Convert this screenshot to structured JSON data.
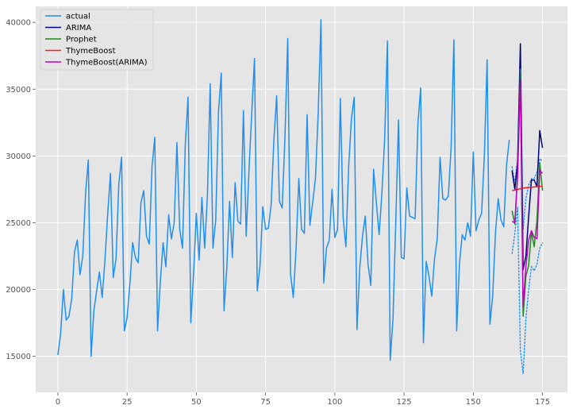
{
  "chart_data": {
    "type": "line",
    "title": "",
    "xlabel": "",
    "ylabel": "",
    "xlim": [
      -8,
      184
    ],
    "ylim": [
      12300,
      41200
    ],
    "x_ticks": [
      0,
      25,
      50,
      75,
      100,
      125,
      150,
      175
    ],
    "y_ticks": [
      15000,
      20000,
      25000,
      30000,
      35000,
      40000
    ],
    "grid": true,
    "background": "#e5e5e5",
    "legend_position": "top-left",
    "series": [
      {
        "name": "actual",
        "color": "#1f8ff0",
        "style": "solid",
        "x_start": 0,
        "values": [
          15100,
          16700,
          20000,
          17700,
          18000,
          19300,
          22800,
          23700,
          21100,
          22500,
          27200,
          29700,
          15000,
          18400,
          19900,
          21300,
          19400,
          22200,
          25700,
          28700,
          20900,
          22300,
          27900,
          29900,
          16900,
          17900,
          20400,
          23500,
          22400,
          22000,
          26500,
          27400,
          24000,
          23400,
          29200,
          31400,
          16900,
          20600,
          23500,
          21700,
          25600,
          23800,
          25000,
          31000,
          24500,
          23100,
          30800,
          34400,
          17500,
          21200,
          25700,
          22200,
          26900,
          23100,
          27000,
          35400,
          23100,
          25200,
          33300,
          36200,
          18400,
          21600,
          26600,
          22400,
          28000,
          25100,
          24900,
          33400,
          24000,
          28900,
          33200,
          37300,
          19900,
          21800,
          26200,
          24500,
          24600,
          26300,
          31200,
          34500,
          26600,
          26100,
          31400,
          38800,
          21200,
          19400,
          23000,
          28300,
          24500,
          24200,
          33100,
          24800,
          26500,
          28300,
          33200,
          40200,
          20500,
          23100,
          23700,
          27500,
          23900,
          24500,
          34300,
          25400,
          23200,
          29200,
          32800,
          34400,
          17000,
          21600,
          24000,
          25500,
          21900,
          20300,
          29000,
          26500,
          24100,
          27200,
          31300,
          38600,
          14700,
          17800,
          25000,
          32700,
          22400,
          22300,
          27600,
          25500,
          25400,
          25300,
          32400,
          35100,
          16000,
          22100,
          21000,
          19500,
          22300,
          23800,
          29900,
          26800,
          26700,
          27000,
          30700,
          38700,
          16900,
          21900,
          24100,
          23700,
          25000,
          24000,
          30300,
          24400,
          25200,
          25700,
          30000,
          37200,
          17400,
          19500,
          24200,
          26800,
          25200,
          24700,
          29300,
          31200
        ]
      },
      {
        "name": "ARIMA",
        "color": "#00007f",
        "style": "solid",
        "x_start": 164,
        "values": [
          28900,
          27500,
          29500,
          38400,
          21500,
          22500,
          25500,
          28200,
          28200,
          27700,
          31900,
          30600
        ]
      },
      {
        "name": "Prophet",
        "color": "#1a8c1a",
        "style": "solid",
        "x_start": 164,
        "values": [
          25900,
          24900,
          28700,
          36500,
          18000,
          21000,
          21800,
          24300,
          23200,
          25200,
          29500,
          27400
        ]
      },
      {
        "name": "ThymeBoost",
        "color": "#ff1a1a",
        "style": "solid",
        "x_start": 164,
        "values": [
          27400,
          27450,
          27500,
          27550,
          27600,
          27620,
          27640,
          27660,
          27680,
          27700,
          27720,
          27740
        ]
      },
      {
        "name": "ThymeBoost(ARIMA)",
        "color": "#bf00bf",
        "style": "solid",
        "x_start": 164,
        "values": [
          25100,
          25000,
          28500,
          35700,
          18700,
          21700,
          23700,
          24400,
          23900,
          23800,
          28900,
          28700
        ]
      }
    ],
    "bands": [
      {
        "color": "#1f8ff0",
        "style": "dotted",
        "x_start": 164,
        "upper": [
          29200,
          28000,
          29800,
          36800,
          24500,
          26800,
          27800,
          28300,
          28300,
          28800,
          29800,
          29600
        ],
        "lower": [
          22700,
          24200,
          26200,
          15400,
          13700,
          17800,
          20000,
          21700,
          21400,
          21900,
          23100,
          23500
        ]
      }
    ]
  }
}
